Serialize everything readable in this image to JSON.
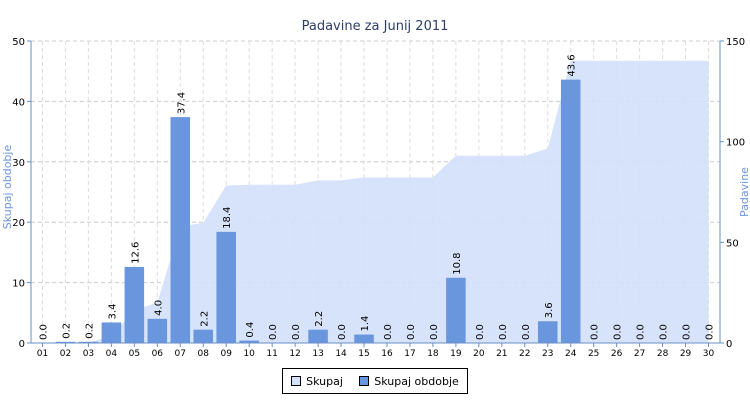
{
  "chart_data": {
    "type": "bar",
    "title": "Padavine za Junij 2011",
    "ylabel_left": "Skupaj obdobje",
    "ylabel_right": "Padavine",
    "left_axis": {
      "min": 0,
      "max": 50,
      "ticks": [
        "0",
        "10",
        "20",
        "30",
        "40",
        "50"
      ]
    },
    "right_axis": {
      "min": 0,
      "max": 150,
      "ticks": [
        "0",
        "50",
        "100",
        "150"
      ]
    },
    "grid": true,
    "legend_position": "bottom",
    "categories": [
      "01",
      "02",
      "03",
      "04",
      "05",
      "06",
      "07",
      "08",
      "09",
      "10",
      "11",
      "12",
      "13",
      "14",
      "15",
      "16",
      "17",
      "18",
      "19",
      "20",
      "21",
      "22",
      "23",
      "24",
      "25",
      "26",
      "27",
      "28",
      "29",
      "30"
    ],
    "series": [
      {
        "name": "Skupaj",
        "type": "area",
        "axis": "right",
        "color": "#d2e0fa",
        "values": [
          0,
          0,
          0.2,
          3.6,
          16.2,
          20.2,
          57.6,
          59.8,
          78.2,
          78.6,
          78.6,
          78.6,
          80.8,
          80.8,
          82.2,
          82.2,
          82.2,
          82.2,
          93.0,
          93.0,
          93.0,
          93.0,
          96.6,
          140.2,
          140.2,
          140.2,
          140.2,
          140.2,
          140.2,
          140.2
        ]
      },
      {
        "name": "Skupaj obdobje",
        "type": "bar",
        "axis": "left",
        "color": "#6a96de",
        "values": [
          0.0,
          0.2,
          0.2,
          3.4,
          12.6,
          4.0,
          37.4,
          2.2,
          18.4,
          0.4,
          0.0,
          0.0,
          2.2,
          0.0,
          1.4,
          0.0,
          0.0,
          0.0,
          10.8,
          0.0,
          0.0,
          0.0,
          3.6,
          43.6,
          0.0,
          0.0,
          0.0,
          0.0,
          0.0,
          0.0
        ],
        "labels": [
          "0.0",
          "0.2",
          "0.2",
          "3.4",
          "12.6",
          "4.0",
          "37.4",
          "2.2",
          "18.4",
          "0.4",
          "0.0",
          "0.0",
          "2.2",
          "0.0",
          "1.4",
          "0.0",
          "0.0",
          "0.0",
          "10.8",
          "0.0",
          "0.0",
          "0.0",
          "3.6",
          "43.6",
          "0.0",
          "0.0",
          "0.0",
          "0.0",
          "0.0",
          "0.0"
        ]
      }
    ]
  },
  "legend": {
    "items": [
      {
        "label": "Skupaj",
        "color": "#d2e0fa"
      },
      {
        "label": "Skupaj obdobje",
        "color": "#6a96de"
      }
    ]
  }
}
